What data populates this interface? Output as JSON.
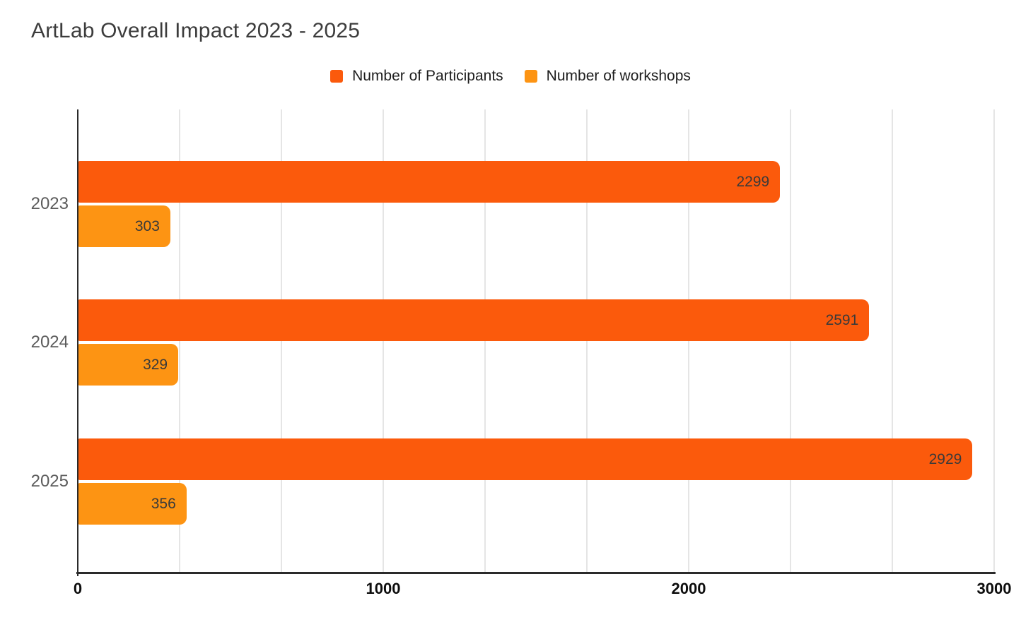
{
  "chart_data": {
    "type": "bar",
    "orientation": "horizontal",
    "title": "ArtLab Overall Impact 2023 - 2025",
    "categories": [
      "2023",
      "2024",
      "2025"
    ],
    "series": [
      {
        "name": "Number of Participants",
        "color": "#fb5a0c",
        "values": [
          2299,
          2591,
          2929
        ]
      },
      {
        "name": "Number of workshops",
        "color": "#fd9413",
        "values": [
          303,
          329,
          356
        ]
      }
    ],
    "xlim": [
      0,
      3000
    ],
    "x_ticks": [
      "0",
      "1000",
      "2000",
      "3000"
    ],
    "x_tick_values": [
      0,
      1000,
      2000,
      3000
    ],
    "gridline_step": 333.333,
    "grid": true,
    "legend_position": "top-center",
    "bar_labels": true
  },
  "colors": {
    "background": "#ffffff",
    "gridline": "#e5e5e5",
    "axis": "#2a2a2a",
    "title_text": "#3c3c3c",
    "category_label": "#5c5c5c",
    "tick_label": "#0d0d0d",
    "bar_label": "#3a3a3a"
  }
}
